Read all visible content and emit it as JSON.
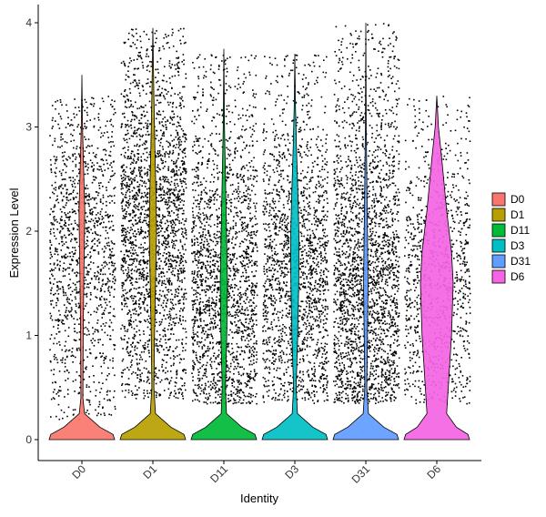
{
  "chart_data": {
    "type": "violin",
    "title": "",
    "xlabel": "Identity",
    "ylabel": "Expression Level",
    "ylim": [
      -0.2,
      4.2
    ],
    "yticks": [
      0,
      1,
      2,
      3,
      4
    ],
    "grid": false,
    "legend_position": "right",
    "categories": [
      "D0",
      "D1",
      "D11",
      "D3",
      "D31",
      "D6"
    ],
    "series": [
      {
        "name": "D0",
        "color": "#F8766D",
        "max": 3.5,
        "density_profile": [
          [
            0,
            1.0
          ],
          [
            0.05,
            0.95
          ],
          [
            0.12,
            0.55
          ],
          [
            0.25,
            0.08
          ],
          [
            0.4,
            0.03
          ],
          [
            1.0,
            0.04
          ],
          [
            1.6,
            0.06
          ],
          [
            2.0,
            0.08
          ],
          [
            2.2,
            0.09
          ],
          [
            2.5,
            0.06
          ],
          [
            3.0,
            0.02
          ],
          [
            3.5,
            0.0
          ]
        ]
      },
      {
        "name": "D1",
        "color": "#B79F00",
        "max": 3.95,
        "density_profile": [
          [
            0,
            1.0
          ],
          [
            0.05,
            0.95
          ],
          [
            0.12,
            0.55
          ],
          [
            0.25,
            0.08
          ],
          [
            0.5,
            0.03
          ],
          [
            1.0,
            0.05
          ],
          [
            1.5,
            0.08
          ],
          [
            2.0,
            0.11
          ],
          [
            2.3,
            0.1
          ],
          [
            2.8,
            0.06
          ],
          [
            3.3,
            0.03
          ],
          [
            3.95,
            0.0
          ]
        ]
      },
      {
        "name": "D11",
        "color": "#00BA38",
        "max": 3.75,
        "density_profile": [
          [
            0,
            1.0
          ],
          [
            0.05,
            0.95
          ],
          [
            0.12,
            0.55
          ],
          [
            0.25,
            0.08
          ],
          [
            0.5,
            0.05
          ],
          [
            1.0,
            0.09
          ],
          [
            1.5,
            0.11
          ],
          [
            2.0,
            0.08
          ],
          [
            2.5,
            0.05
          ],
          [
            3.0,
            0.02
          ],
          [
            3.75,
            0.0
          ]
        ]
      },
      {
        "name": "D3",
        "color": "#00BFC4",
        "max": 3.7,
        "density_profile": [
          [
            0,
            1.0
          ],
          [
            0.05,
            0.95
          ],
          [
            0.12,
            0.55
          ],
          [
            0.25,
            0.08
          ],
          [
            0.5,
            0.04
          ],
          [
            1.0,
            0.09
          ],
          [
            1.5,
            0.12
          ],
          [
            1.9,
            0.13
          ],
          [
            2.3,
            0.1
          ],
          [
            2.8,
            0.05
          ],
          [
            3.2,
            0.02
          ],
          [
            3.7,
            0.0
          ]
        ]
      },
      {
        "name": "D31",
        "color": "#619CFF",
        "max": 4.0,
        "density_profile": [
          [
            0,
            1.0
          ],
          [
            0.05,
            0.95
          ],
          [
            0.12,
            0.55
          ],
          [
            0.25,
            0.08
          ],
          [
            0.5,
            0.03
          ],
          [
            1.0,
            0.05
          ],
          [
            1.5,
            0.07
          ],
          [
            2.0,
            0.05
          ],
          [
            2.5,
            0.03
          ],
          [
            3.0,
            0.015
          ],
          [
            4.0,
            0.0
          ]
        ]
      },
      {
        "name": "D6",
        "color": "#F564E3",
        "max": 3.3,
        "density_profile": [
          [
            0,
            1.0
          ],
          [
            0.05,
            0.95
          ],
          [
            0.12,
            0.6
          ],
          [
            0.25,
            0.3
          ],
          [
            0.5,
            0.35
          ],
          [
            1.0,
            0.45
          ],
          [
            1.5,
            0.5
          ],
          [
            1.8,
            0.45
          ],
          [
            2.2,
            0.3
          ],
          [
            2.7,
            0.15
          ],
          [
            3.0,
            0.05
          ],
          [
            3.3,
            0.0
          ]
        ]
      }
    ],
    "jitter_points": {
      "color": "#000000",
      "ranges": [
        {
          "name": "D0",
          "low": 0.2,
          "high": 3.3,
          "center": 1.9,
          "count": 1300
        },
        {
          "name": "D1",
          "low": 0.4,
          "high": 3.95,
          "center": 2.0,
          "count": 2300
        },
        {
          "name": "D11",
          "low": 0.35,
          "high": 3.7,
          "center": 1.5,
          "count": 2000
        },
        {
          "name": "D3",
          "low": 0.35,
          "high": 3.7,
          "center": 1.6,
          "count": 1800
        },
        {
          "name": "D31",
          "low": 0.35,
          "high": 4.0,
          "center": 1.5,
          "count": 2400
        },
        {
          "name": "D6",
          "low": 0.35,
          "high": 3.3,
          "center": 1.5,
          "count": 1000
        }
      ]
    }
  }
}
